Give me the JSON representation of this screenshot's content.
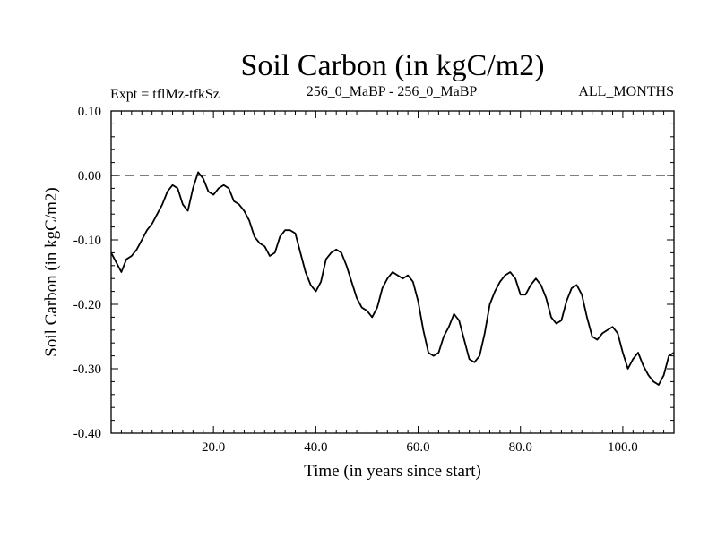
{
  "chart_data": {
    "type": "line",
    "title": "Soil Carbon (in kgC/m2)",
    "subtitle_left": "Expt = tflMz-tfkSz",
    "subtitle_center": "256_0_MaBP - 256_0_MaBP",
    "subtitle_right": "ALL_MONTHS",
    "xlabel": "Time (in years since start)",
    "ylabel": "Soil Carbon (in kgC/m2)",
    "xlim": [
      0,
      110
    ],
    "ylim": [
      -0.4,
      0.1
    ],
    "xticks": [
      20,
      40,
      60,
      80,
      100
    ],
    "xtick_labels": [
      "20.0",
      "40.0",
      "60.0",
      "80.0",
      "100.0"
    ],
    "yticks": [
      0.1,
      0.0,
      -0.1,
      -0.2,
      -0.3,
      -0.4
    ],
    "ytick_labels": [
      "0.10",
      "0.00",
      "-0.10",
      "-0.20",
      "-0.30",
      "-0.40"
    ],
    "reference_line": {
      "y": 0.0,
      "style": "dashed"
    },
    "series": [
      {
        "name": "Soil Carbon",
        "color": "#000000",
        "x": [
          0,
          1,
          2,
          3,
          4,
          5,
          6,
          7,
          8,
          9,
          10,
          11,
          12,
          13,
          14,
          15,
          16,
          17,
          18,
          19,
          20,
          21,
          22,
          23,
          24,
          25,
          26,
          27,
          28,
          29,
          30,
          31,
          32,
          33,
          34,
          35,
          36,
          37,
          38,
          39,
          40,
          41,
          42,
          43,
          44,
          45,
          46,
          47,
          48,
          49,
          50,
          51,
          52,
          53,
          54,
          55,
          56,
          57,
          58,
          59,
          60,
          61,
          62,
          63,
          64,
          65,
          66,
          67,
          68,
          69,
          70,
          71,
          72,
          73,
          74,
          75,
          76,
          77,
          78,
          79,
          80,
          81,
          82,
          83,
          84,
          85,
          86,
          87,
          88,
          89,
          90,
          91,
          92,
          93,
          94,
          95,
          96,
          97,
          98,
          99,
          100,
          101,
          102,
          103,
          104,
          105,
          106,
          107,
          108,
          109,
          110
        ],
        "y": [
          -0.12,
          -0.135,
          -0.15,
          -0.13,
          -0.125,
          -0.115,
          -0.1,
          -0.085,
          -0.075,
          -0.06,
          -0.045,
          -0.025,
          -0.015,
          -0.02,
          -0.045,
          -0.055,
          -0.02,
          0.005,
          -0.005,
          -0.025,
          -0.03,
          -0.02,
          -0.015,
          -0.02,
          -0.04,
          -0.045,
          -0.055,
          -0.07,
          -0.095,
          -0.105,
          -0.11,
          -0.125,
          -0.12,
          -0.095,
          -0.085,
          -0.085,
          -0.09,
          -0.12,
          -0.15,
          -0.17,
          -0.18,
          -0.165,
          -0.13,
          -0.12,
          -0.115,
          -0.12,
          -0.14,
          -0.165,
          -0.19,
          -0.205,
          -0.21,
          -0.22,
          -0.205,
          -0.175,
          -0.16,
          -0.15,
          -0.155,
          -0.16,
          -0.155,
          -0.165,
          -0.195,
          -0.24,
          -0.275,
          -0.28,
          -0.275,
          -0.25,
          -0.235,
          -0.215,
          -0.225,
          -0.255,
          -0.285,
          -0.29,
          -0.28,
          -0.245,
          -0.2,
          -0.18,
          -0.165,
          -0.155,
          -0.15,
          -0.16,
          -0.185,
          -0.185,
          -0.17,
          -0.16,
          -0.17,
          -0.19,
          -0.22,
          -0.23,
          -0.225,
          -0.195,
          -0.175,
          -0.17,
          -0.185,
          -0.22,
          -0.25,
          -0.255,
          -0.245,
          -0.24,
          -0.235,
          -0.245,
          -0.275,
          -0.3,
          -0.285,
          -0.275,
          -0.295,
          -0.31,
          -0.32,
          -0.325,
          -0.31,
          -0.28,
          -0.275
        ]
      }
    ]
  }
}
